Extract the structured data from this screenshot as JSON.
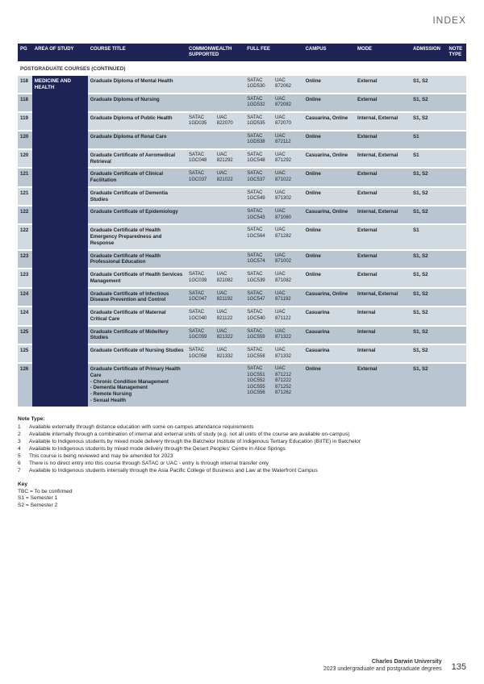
{
  "index_label": "INDEX",
  "section_title": "POSTGRADUATE COURSES (CONTINUED)",
  "colors": {
    "header_bg": "#1d2455",
    "row_bg": "#d1dae1",
    "row_bg_dark": "#b9c6d1"
  },
  "headers": {
    "pg": "PG",
    "area": "AREA OF STUDY",
    "title": "COURSE TITLE",
    "cs": "COMMONWEALTH SUPPORTED",
    "ff": "FULL FEE",
    "campus": "CAMPUS",
    "mode": "MODE",
    "admission": "ADMISSION",
    "note": "NOTE TYPE"
  },
  "area": "MEDICINE AND HEALTH",
  "rows": [
    {
      "dark": false,
      "pg": "118",
      "title": "Graduate Diploma of Mental Health",
      "cs": [],
      "ff": [
        [
          "SATAC",
          "UAC"
        ],
        [
          "1GD530",
          "872062"
        ]
      ],
      "campus": "Online",
      "mode": "External",
      "adm": "S1, S2"
    },
    {
      "dark": true,
      "pg": "118",
      "title": "Graduate Diploma of Nursing",
      "cs": [],
      "ff": [
        [
          "SATAC",
          "UAC"
        ],
        [
          "1GD532",
          "872082"
        ]
      ],
      "campus": "Online",
      "mode": "External",
      "adm": "S1, S2"
    },
    {
      "dark": false,
      "pg": "119",
      "title": "Graduate Diploma of Public Health",
      "cs": [
        [
          "SATAC",
          "UAC"
        ],
        [
          "1GD035",
          "822070"
        ]
      ],
      "ff": [
        [
          "SATAC",
          "UAC"
        ],
        [
          "1GD535",
          "872070"
        ]
      ],
      "campus": "Casuarina, Online",
      "mode": "Internal, External",
      "adm": "S1, S2"
    },
    {
      "dark": true,
      "pg": "120",
      "title": "Graduate Diploma of Renal Care",
      "cs": [],
      "ff": [
        [
          "SATAC",
          "UAC"
        ],
        [
          "1GD538",
          "872112"
        ]
      ],
      "campus": "Online",
      "mode": "External",
      "adm": "S1"
    },
    {
      "dark": false,
      "pg": "120",
      "title": "Graduate Certificate of Aeromedical Retrieval",
      "cs": [
        [
          "SATAC",
          "UAC"
        ],
        [
          "1GC048",
          "821292"
        ]
      ],
      "ff": [
        [
          "SATAC",
          "UAC"
        ],
        [
          "1GC548",
          "871292"
        ]
      ],
      "campus": "Casuarina, Online",
      "mode": "Internal, External",
      "adm": "S1"
    },
    {
      "dark": true,
      "pg": "121",
      "title": "Graduate Certificate of Clinical Facilitation",
      "cs": [
        [
          "SATAC",
          "UAC"
        ],
        [
          "1GC037",
          "821022"
        ]
      ],
      "ff": [
        [
          "SATAC",
          "UAC"
        ],
        [
          "1GC537",
          "871022"
        ]
      ],
      "campus": "Online",
      "mode": "External",
      "adm": "S1, S2"
    },
    {
      "dark": false,
      "pg": "121",
      "title": "Graduate Certificate of Dementia Studies",
      "cs": [],
      "ff": [
        [
          "SATAC",
          "UAC"
        ],
        [
          "1GC549",
          "871302"
        ]
      ],
      "campus": "Online",
      "mode": "External",
      "adm": "S1, S2"
    },
    {
      "dark": true,
      "pg": "122",
      "title": "Graduate Certificate of Epidemiology",
      "cs": [],
      "ff": [
        [
          "SATAC",
          "UAC"
        ],
        [
          "1GC543",
          "871060"
        ]
      ],
      "campus": "Casuarina, Online",
      "mode": "Internal, External",
      "adm": "S1, S2"
    },
    {
      "dark": false,
      "pg": "122",
      "title": "Graduate Certificate of Health Emergency Preparedness and Response",
      "cs": [],
      "ff": [
        [
          "SATAC",
          "UAC"
        ],
        [
          "1GC564",
          "871282"
        ]
      ],
      "campus": "Online",
      "mode": "External",
      "adm": "S1"
    },
    {
      "dark": true,
      "pg": "123",
      "title": "Graduate Certificate of Health Professional Education",
      "cs": [],
      "ff": [
        [
          "SATAC",
          "UAC"
        ],
        [
          "1GC574",
          "871002"
        ]
      ],
      "campus": "Online",
      "mode": "External",
      "adm": "S1, S2"
    },
    {
      "dark": false,
      "pg": "123",
      "title": "Graduate Certificate of Health Services Management",
      "cs": [
        [
          "SATAC",
          "UAC"
        ],
        [
          "1GC039",
          "821082"
        ]
      ],
      "ff": [
        [
          "SATAC",
          "UAC"
        ],
        [
          "1GC539",
          "871082"
        ]
      ],
      "campus": "Online",
      "mode": "External",
      "adm": "S1, S2"
    },
    {
      "dark": true,
      "pg": "124",
      "title": "Graduate Certificate of Infectious Disease Prevention and Control",
      "cs": [
        [
          "SATAC",
          "UAC"
        ],
        [
          "1GC047",
          "821192"
        ]
      ],
      "ff": [
        [
          "SATAC",
          "UAC"
        ],
        [
          "1GC547",
          "871192"
        ]
      ],
      "campus": "Casuarina, Online",
      "mode": "Internal, External",
      "adm": "S1, S2"
    },
    {
      "dark": false,
      "pg": "124",
      "title": "Graduate Certificate of Maternal Critical Care",
      "cs": [
        [
          "SATAC",
          "UAC"
        ],
        [
          "1GC040",
          "821122"
        ]
      ],
      "ff": [
        [
          "SATAC",
          "UAC"
        ],
        [
          "1GC540",
          "871122"
        ]
      ],
      "campus": "Casuarina",
      "mode": "Internal",
      "adm": "S1, S2"
    },
    {
      "dark": true,
      "pg": "125",
      "title": "Graduate Certificate of Midwifery Studies",
      "cs": [
        [
          "SATAC",
          "UAC"
        ],
        [
          "1GC059",
          "821322"
        ]
      ],
      "ff": [
        [
          "SATAC",
          "UAC"
        ],
        [
          "1GC559",
          "871322"
        ]
      ],
      "campus": "Casuarina",
      "mode": "Internal",
      "adm": "S1, S2"
    },
    {
      "dark": false,
      "pg": "125",
      "title": "Graduate Certificate of Nursing Studies",
      "cs": [
        [
          "SATAC",
          "UAC"
        ],
        [
          "1GC058",
          "821332"
        ]
      ],
      "ff": [
        [
          "SATAC",
          "UAC"
        ],
        [
          "1GC558",
          "871332"
        ]
      ],
      "campus": "Casuarina",
      "mode": "Internal",
      "adm": "S1, S2"
    },
    {
      "dark": true,
      "pg": "126",
      "title": "Graduate Certificate of Primary Health Care\n- Chronic Condition Management\n- Dementia Management\n- Remote Nursing\n- Sexual Health",
      "cs": [],
      "ff": [
        [
          "SATAC",
          "UAC"
        ],
        [
          "",
          ""
        ],
        [
          "1GC551",
          "871212"
        ],
        [
          "1GC552",
          "871222"
        ],
        [
          "1GC555",
          "871252"
        ],
        [
          "1GC556",
          "871262"
        ]
      ],
      "campus": "Online",
      "mode": "External",
      "adm": "S1, S2"
    }
  ],
  "notes": {
    "header": "Note Type:",
    "items": [
      "Available externally through distance education with some on-campus attendance requirements",
      "Available internally through a combination of internal and external units of study (e.g. not all units of the course are available on-campus)",
      "Available to Indigenous students by mixed mode delivery through the Batchelor Institute of Indigenous Tertiary Education (BIITE) in Batchelor",
      "Available to Indigenous students by mixed mode delivery through the Desert Peoples' Centre in Alice Springs",
      "This course is being reviewed and may be amended for 2023",
      "There is no direct entry into this course through SATAC or UAC - entry is through internal transfer only",
      "Available to Indigenous students internally through the Asia Pacific College of Business and Law at the Waterfront Campus"
    ]
  },
  "key": {
    "header": "Key",
    "items": [
      "TBC = To be confirmed",
      "S1 = Semester 1",
      "S2 = Semester 2"
    ]
  },
  "footer": {
    "name": "Charles Darwin University",
    "sub": "2023 undergraduate and postgraduate degrees",
    "page": "135"
  }
}
